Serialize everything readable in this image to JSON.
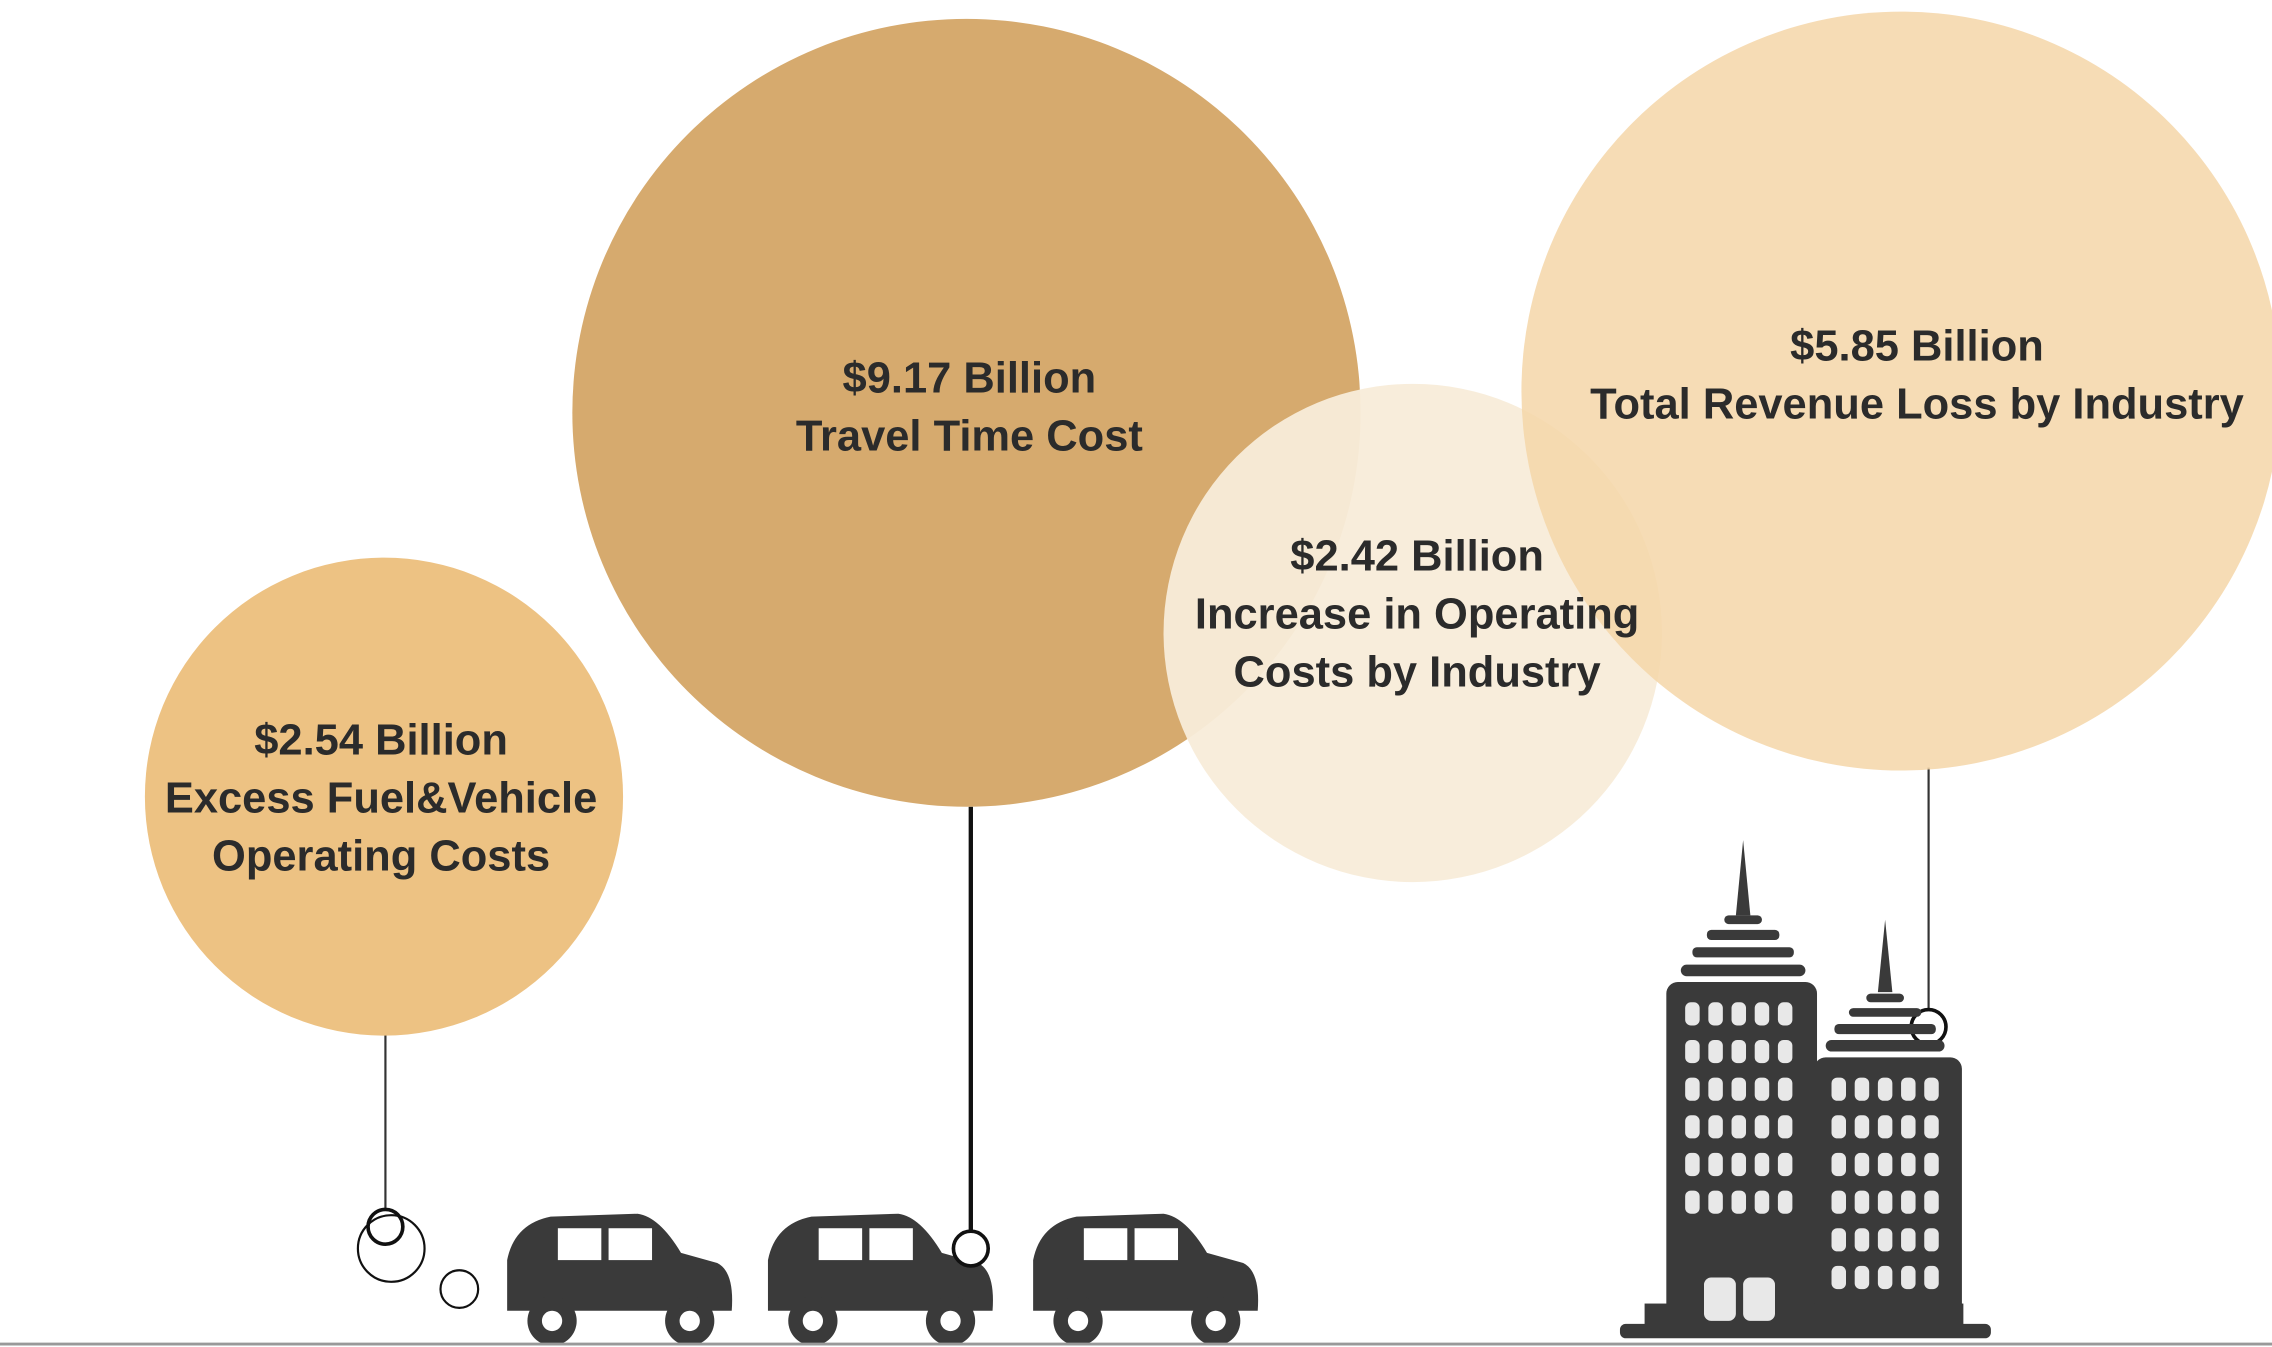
{
  "bubbles": [
    {
      "amount": "$2.54 Billion",
      "label": [
        "Excess Fuel&Vehicle",
        "Operating Costs"
      ]
    },
    {
      "amount": "$9.17 Billion",
      "label": [
        "Travel Time Cost"
      ]
    },
    {
      "amount": "$2.42 Billion",
      "label": [
        "Increase in Operating",
        "Costs by Industry"
      ]
    },
    {
      "amount": "$5.85 Billion",
      "label": [
        "Total Revenue Loss by Industry"
      ]
    }
  ]
}
